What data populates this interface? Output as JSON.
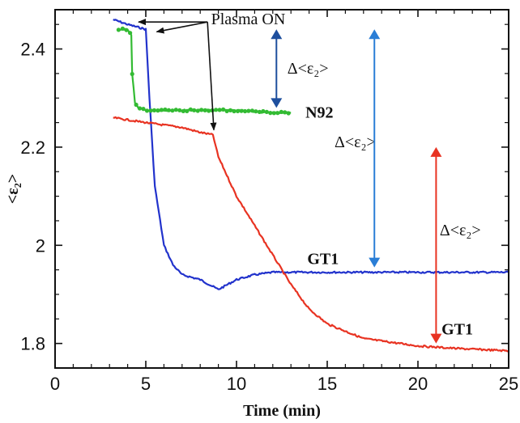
{
  "chart_data": {
    "type": "line",
    "xlabel": "Time (min)",
    "ylabel": "<ε₂>",
    "xlim": [
      0,
      25
    ],
    "ylim": [
      1.75,
      2.48
    ],
    "x_ticks": [
      0,
      5,
      10,
      15,
      20,
      25
    ],
    "y_ticks": [
      1.8,
      2,
      2.2,
      2.4
    ],
    "x_tick_labels": [
      "0",
      "5",
      "10",
      "15",
      "20",
      "25"
    ],
    "y_tick_labels": [
      "1.8",
      "2",
      "2.2",
      "2.4"
    ],
    "grid": false,
    "series": [
      {
        "color": "#2233cc",
        "x": [
          3.2,
          4.0,
          5.0,
          5.2,
          5.5,
          6.0,
          6.5,
          7.0,
          8.0,
          9.0,
          10.0,
          11.0,
          12.0,
          13.0,
          15.0,
          20.0,
          25.0
        ],
        "values": [
          2.46,
          2.45,
          2.44,
          2.3,
          2.12,
          2.0,
          1.96,
          1.94,
          1.93,
          1.91,
          1.93,
          1.94,
          1.945,
          1.945,
          1.945,
          1.945,
          1.945
        ]
      },
      {
        "color": "#e83322",
        "x": [
          3.2,
          5.0,
          7.0,
          8.0,
          8.7,
          9.0,
          10.0,
          11.0,
          12.0,
          13.0,
          14.0,
          15.0,
          17.0,
          20.0,
          22.0,
          25.0
        ],
        "values": [
          2.26,
          2.25,
          2.24,
          2.23,
          2.225,
          2.18,
          2.1,
          2.04,
          1.98,
          1.92,
          1.87,
          1.84,
          1.81,
          1.795,
          1.79,
          1.785
        ]
      },
      {
        "color": "#33bb33",
        "x": [
          3.5,
          3.8,
          4.0,
          4.2,
          4.25,
          4.4,
          4.6,
          5.0,
          6.0,
          8.0,
          10.0,
          12.0,
          13.0
        ],
        "values": [
          2.44,
          2.44,
          2.44,
          2.43,
          2.35,
          2.29,
          2.28,
          2.275,
          2.275,
          2.275,
          2.275,
          2.27,
          2.27
        ]
      }
    ],
    "annotations": {
      "plasma_on": "Plasma ON",
      "delta_green": "Δ<ε₂>",
      "delta_blue": "Δ<ε₂>",
      "delta_red": "Δ<ε₂>",
      "label_n92": "N92",
      "label_gt1_blue": "GT1",
      "label_gt1_red": "GT1"
    },
    "delta_arrows": [
      {
        "color": "#1e4f9e",
        "x": 12.2,
        "y_top": 2.44,
        "y_bottom": 2.28
      },
      {
        "color": "#2a7ed6",
        "x": 17.6,
        "y_top": 2.44,
        "y_bottom": 1.955
      },
      {
        "color": "#e83322",
        "x": 21.0,
        "y_top": 2.2,
        "y_bottom": 1.8
      }
    ]
  }
}
